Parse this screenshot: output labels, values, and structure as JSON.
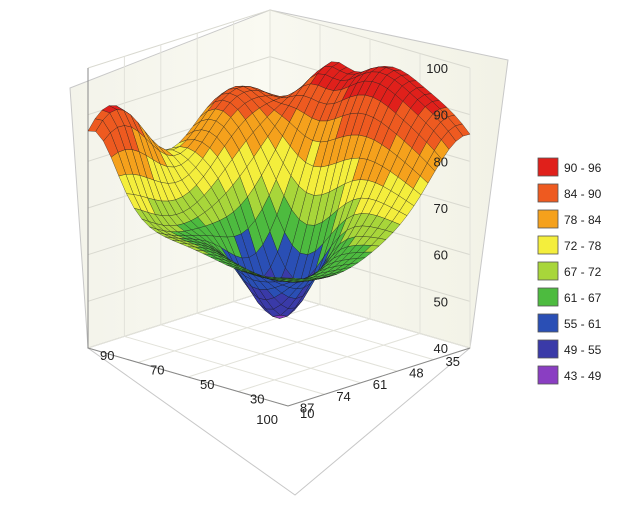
{
  "chart_data": {
    "type": "surface3d",
    "title": "",
    "z_axis": {
      "ticks": [
        40,
        50,
        60,
        70,
        80,
        90,
        100
      ],
      "range": [
        40,
        100
      ]
    },
    "x_axis": {
      "ticks": [
        35,
        48,
        61,
        74,
        87,
        100
      ],
      "range": [
        35,
        100
      ]
    },
    "y_axis": {
      "ticks": [
        10,
        30,
        50,
        70,
        90
      ],
      "range": [
        10,
        90
      ]
    },
    "legend_position": "right",
    "legend": [
      {
        "label": "90 - 96",
        "color": "#e0201b"
      },
      {
        "label": "84 - 90",
        "color": "#ee5a20"
      },
      {
        "label": "78 - 84",
        "color": "#f5a11c"
      },
      {
        "label": "72 - 78",
        "color": "#f4ee3c"
      },
      {
        "label": "67 - 72",
        "color": "#a8d63a"
      },
      {
        "label": "61 - 67",
        "color": "#4dbb3f"
      },
      {
        "label": "55 - 61",
        "color": "#2a4fb5"
      },
      {
        "label": "49 - 55",
        "color": "#3a3aa8"
      },
      {
        "label": "43 - 49",
        "color": "#8a3ec2"
      }
    ],
    "surface_shape": [
      {
        "x": 35,
        "y": 10,
        "z": 80
      },
      {
        "x": 35,
        "y": 50,
        "z": 95
      },
      {
        "x": 35,
        "y": 90,
        "z": 90
      },
      {
        "x": 67,
        "y": 50,
        "z": 46
      },
      {
        "x": 100,
        "y": 10,
        "z": 67
      },
      {
        "x": 100,
        "y": 90,
        "z": 90
      }
    ]
  }
}
